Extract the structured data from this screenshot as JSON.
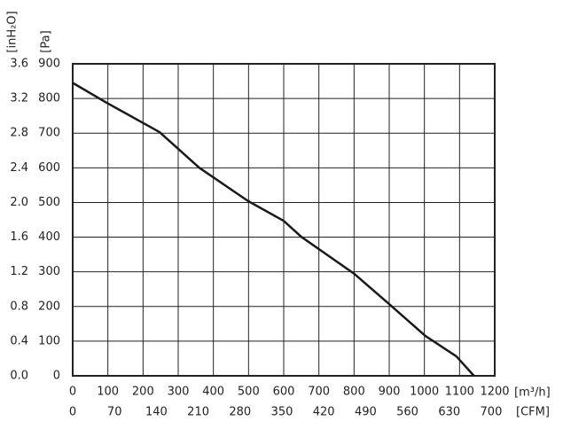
{
  "chart_data": {
    "type": "line",
    "x_label": "[m³/h]",
    "x2_label": "[CFM]",
    "y_label": "[Pa]",
    "y2_label": "[inH₂O]",
    "x": [
      0,
      96,
      247,
      360,
      499,
      600,
      650,
      801,
      902,
      1003,
      1091,
      1141
    ],
    "series": [
      {
        "color": "#1a1a1a",
        "values": [
          845,
          788,
          703,
          600,
          504,
          447,
          401,
          294,
          205,
          115,
          56,
          0
        ]
      }
    ],
    "xlim": [
      0,
      1200
    ],
    "xticks": [
      0,
      100,
      200,
      300,
      400,
      500,
      600,
      700,
      800,
      900,
      1000,
      1100,
      1200
    ],
    "x2lim": [
      0,
      706
    ],
    "x2ticks": [
      0,
      70,
      140,
      210,
      280,
      350,
      420,
      490,
      560,
      630,
      700
    ],
    "ylim": [
      0,
      900
    ],
    "yticks": [
      0,
      100,
      200,
      300,
      400,
      500,
      600,
      700,
      800,
      900
    ],
    "y2lim": [
      0,
      3.6
    ],
    "y2ticks": [
      {
        "value": 0,
        "label": "0.0"
      },
      0.4,
      0.8,
      1.2,
      1.6,
      {
        "value": 2,
        "label": "2.0"
      },
      2.4,
      2.8,
      3.2,
      3.6
    ],
    "grid": true
  }
}
